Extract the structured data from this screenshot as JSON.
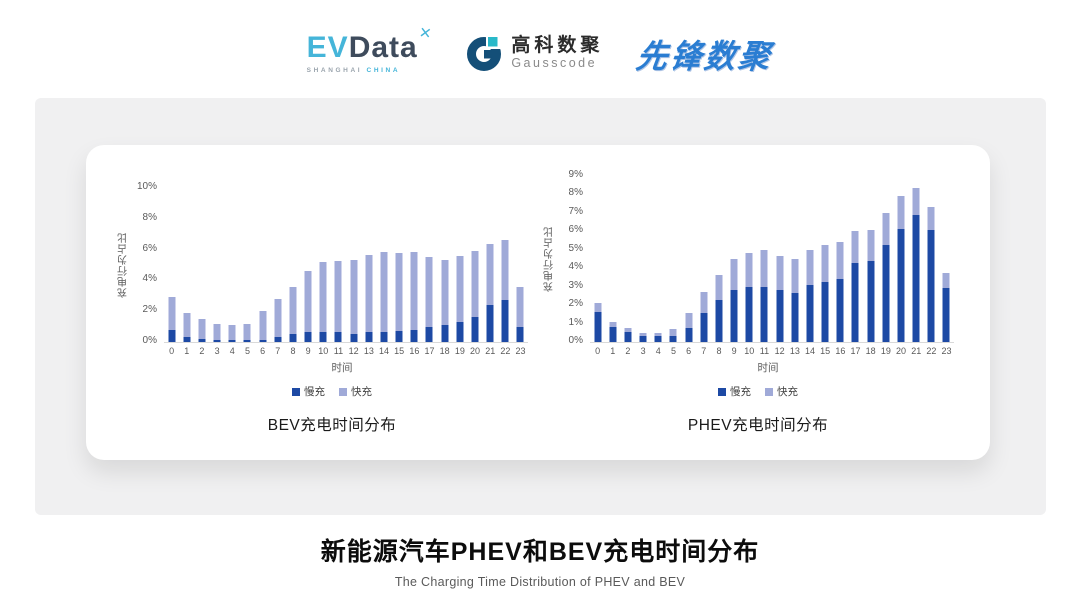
{
  "header": {
    "evdata": {
      "ev": "EV",
      "data": "Data",
      "mark": "✕",
      "sub1": "SHANGHAI ",
      "sub2": "CHINA"
    },
    "gausscode": {
      "cn": "高科数聚",
      "en": "Gausscode"
    },
    "xianfeng": {
      "text": "先锋数聚"
    }
  },
  "colors": {
    "bar_slow": "#1d49a4",
    "bar_fast": "#a0aad8",
    "evdata_cyan": "#45b5d9",
    "evdata_dark": "#3e4b5c",
    "evdata_sub_gray": "#9aa4ad",
    "gauss_navy": "#144f78",
    "gauss_teal": "#29b9c9",
    "xianfeng_blue": "#2a7dd2",
    "panel_gray": "#f0f0f1",
    "axis_text": "#595959"
  },
  "chart_data": [
    {
      "type": "bar",
      "stacked": true,
      "title": "BEV充电时间分布",
      "xlabel": "时间",
      "ylabel": "充电行为占比",
      "ylim": [
        0,
        10
      ],
      "ytick_step": 2,
      "ytick_suffix": "%",
      "grid": false,
      "legend_position": "bottom",
      "categories": [
        "0",
        "1",
        "2",
        "3",
        "4",
        "5",
        "6",
        "7",
        "8",
        "9",
        "10",
        "11",
        "12",
        "13",
        "14",
        "15",
        "16",
        "17",
        "18",
        "19",
        "20",
        "21",
        "22",
        "23"
      ],
      "series": [
        {
          "name": "慢充",
          "color": "#1d49a4",
          "values": [
            0.75,
            0.35,
            0.2,
            0.1,
            0.1,
            0.1,
            0.15,
            0.35,
            0.5,
            0.65,
            0.65,
            0.65,
            0.55,
            0.65,
            0.65,
            0.7,
            0.8,
            0.95,
            1.1,
            1.3,
            1.6,
            2.4,
            2.75,
            1.0
          ]
        },
        {
          "name": "快充",
          "color": "#a0aad8",
          "values": [
            2.15,
            1.55,
            1.3,
            1.1,
            1.0,
            1.1,
            1.85,
            2.45,
            3.1,
            3.95,
            4.55,
            4.6,
            4.75,
            5.0,
            5.2,
            5.1,
            5.05,
            4.55,
            4.25,
            4.3,
            4.3,
            3.95,
            3.85,
            2.6
          ]
        }
      ]
    },
    {
      "type": "bar",
      "stacked": true,
      "title": "PHEV充电时间分布",
      "xlabel": "时间",
      "ylabel": "充电行为占比",
      "ylim": [
        0,
        9
      ],
      "ytick_step": 1,
      "ytick_suffix": "%",
      "grid": false,
      "legend_position": "bottom",
      "categories": [
        "0",
        "1",
        "2",
        "3",
        "4",
        "5",
        "6",
        "7",
        "8",
        "9",
        "10",
        "11",
        "12",
        "13",
        "14",
        "15",
        "16",
        "17",
        "18",
        "19",
        "20",
        "21",
        "22",
        "23"
      ],
      "series": [
        {
          "name": "慢充",
          "color": "#1d49a4",
          "values": [
            1.65,
            0.8,
            0.55,
            0.3,
            0.3,
            0.35,
            0.75,
            1.6,
            2.3,
            2.8,
            3.0,
            3.0,
            2.8,
            2.65,
            3.1,
            3.25,
            3.4,
            4.3,
            4.4,
            5.25,
            6.15,
            6.9,
            6.05,
            2.95
          ]
        },
        {
          "name": "快充",
          "color": "#a0aad8",
          "values": [
            0.45,
            0.3,
            0.2,
            0.2,
            0.2,
            0.35,
            0.85,
            1.1,
            1.35,
            1.7,
            1.8,
            2.0,
            1.85,
            1.85,
            1.9,
            2.0,
            2.05,
            1.7,
            1.65,
            1.75,
            1.75,
            1.45,
            1.25,
            0.8
          ]
        }
      ]
    }
  ],
  "footer": {
    "title": "新能源汽车PHEV和BEV充电时间分布",
    "subtitle": "The Charging Time Distribution of PHEV and BEV"
  }
}
